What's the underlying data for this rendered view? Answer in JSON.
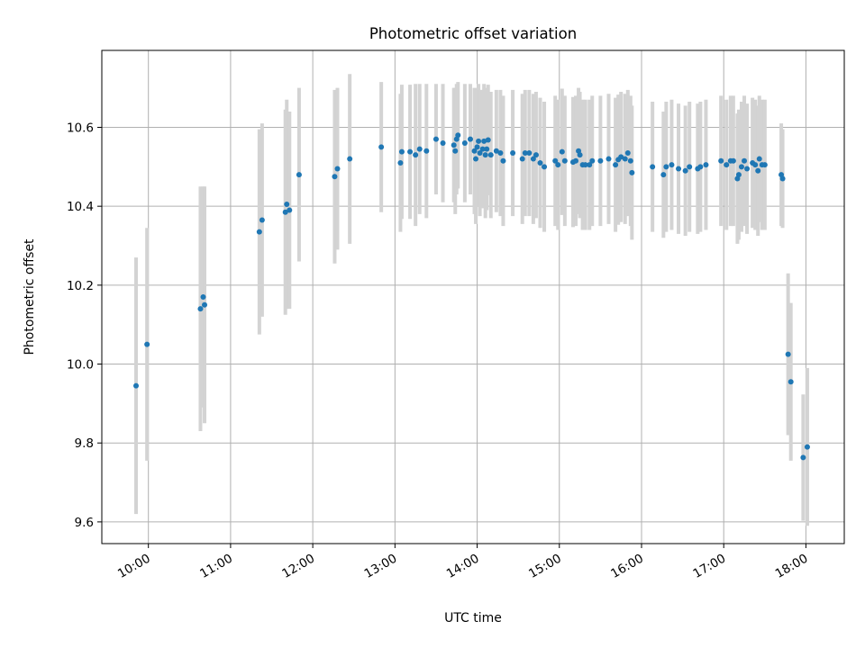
{
  "chart_data": {
    "type": "scatter",
    "title": "Photometric offset variation",
    "xlabel": "UTC time",
    "ylabel": "Photometric offset",
    "x_tick_labels": [
      "10:00",
      "11:00",
      "12:00",
      "13:00",
      "14:00",
      "15:00",
      "16:00",
      "17:00",
      "18:00"
    ],
    "y_tick_labels": [
      "9.6",
      "9.8",
      "10.0",
      "10.2",
      "10.4",
      "10.6"
    ],
    "y_ticks": [
      9.6,
      9.8,
      10.0,
      10.2,
      10.4,
      10.6
    ],
    "xlim": [
      "09:26",
      "18:28"
    ],
    "ylim": [
      9.545,
      10.795
    ],
    "grid": true,
    "colors": {
      "marker": "#1f77b4",
      "errorbar": "#d3d3d3",
      "grid": "#b0b0b0"
    },
    "series": [
      {
        "points": [
          {
            "x": "09:51",
            "y": 9.945,
            "yerr": 0.325
          },
          {
            "x": "09:59",
            "y": 10.05,
            "yerr": 0.295
          },
          {
            "x": "10:38",
            "y": 10.14,
            "yerr": 0.31
          },
          {
            "x": "10:40",
            "y": 10.17,
            "yerr": 0.28
          },
          {
            "x": "10:41",
            "y": 10.15,
            "yerr": 0.3
          },
          {
            "x": "11:21",
            "y": 10.335,
            "yerr": 0.26
          },
          {
            "x": "11:23",
            "y": 10.365,
            "yerr": 0.245
          },
          {
            "x": "11:40",
            "y": 10.385,
            "yerr": 0.26
          },
          {
            "x": "11:41",
            "y": 10.405,
            "yerr": 0.265
          },
          {
            "x": "11:43",
            "y": 10.39,
            "yerr": 0.25
          },
          {
            "x": "11:50",
            "y": 10.48,
            "yerr": 0.22
          },
          {
            "x": "12:16",
            "y": 10.475,
            "yerr": 0.22
          },
          {
            "x": "12:18",
            "y": 10.495,
            "yerr": 0.205
          },
          {
            "x": "12:27",
            "y": 10.52,
            "yerr": 0.215
          },
          {
            "x": "12:50",
            "y": 10.55,
            "yerr": 0.165
          },
          {
            "x": "13:04",
            "y": 10.51,
            "yerr": 0.175
          },
          {
            "x": "13:05",
            "y": 10.538,
            "yerr": 0.17
          },
          {
            "x": "13:11",
            "y": 10.538,
            "yerr": 0.17
          },
          {
            "x": "13:15",
            "y": 10.53,
            "yerr": 0.18
          },
          {
            "x": "13:18",
            "y": 10.545,
            "yerr": 0.165
          },
          {
            "x": "13:23",
            "y": 10.54,
            "yerr": 0.17
          },
          {
            "x": "13:30",
            "y": 10.57,
            "yerr": 0.14
          },
          {
            "x": "13:35",
            "y": 10.56,
            "yerr": 0.15
          },
          {
            "x": "13:43",
            "y": 10.555,
            "yerr": 0.145
          },
          {
            "x": "13:44",
            "y": 10.54,
            "yerr": 0.16
          },
          {
            "x": "13:45",
            "y": 10.57,
            "yerr": 0.14
          },
          {
            "x": "13:46",
            "y": 10.58,
            "yerr": 0.135
          },
          {
            "x": "13:51",
            "y": 10.56,
            "yerr": 0.15
          },
          {
            "x": "13:55",
            "y": 10.57,
            "yerr": 0.14
          },
          {
            "x": "13:58",
            "y": 10.54,
            "yerr": 0.16
          },
          {
            "x": "13:59",
            "y": 10.52,
            "yerr": 0.165
          },
          {
            "x": "14:00",
            "y": 10.55,
            "yerr": 0.15
          },
          {
            "x": "14:01",
            "y": 10.565,
            "yerr": 0.145
          },
          {
            "x": "14:02",
            "y": 10.535,
            "yerr": 0.16
          },
          {
            "x": "14:04",
            "y": 10.545,
            "yerr": 0.15
          },
          {
            "x": "14:05",
            "y": 10.565,
            "yerr": 0.145
          },
          {
            "x": "14:06",
            "y": 10.53,
            "yerr": 0.16
          },
          {
            "x": "14:07",
            "y": 10.545,
            "yerr": 0.155
          },
          {
            "x": "14:08",
            "y": 10.568,
            "yerr": 0.14
          },
          {
            "x": "14:10",
            "y": 10.53,
            "yerr": 0.16
          },
          {
            "x": "14:14",
            "y": 10.54,
            "yerr": 0.155
          },
          {
            "x": "14:17",
            "y": 10.535,
            "yerr": 0.16
          },
          {
            "x": "14:19",
            "y": 10.515,
            "yerr": 0.165
          },
          {
            "x": "14:26",
            "y": 10.535,
            "yerr": 0.16
          },
          {
            "x": "14:33",
            "y": 10.52,
            "yerr": 0.165
          },
          {
            "x": "14:35",
            "y": 10.535,
            "yerr": 0.16
          },
          {
            "x": "14:38",
            "y": 10.535,
            "yerr": 0.16
          },
          {
            "x": "14:41",
            "y": 10.52,
            "yerr": 0.165
          },
          {
            "x": "14:43",
            "y": 10.53,
            "yerr": 0.16
          },
          {
            "x": "14:46",
            "y": 10.51,
            "yerr": 0.165
          },
          {
            "x": "14:49",
            "y": 10.5,
            "yerr": 0.165
          },
          {
            "x": "14:57",
            "y": 10.515,
            "yerr": 0.165
          },
          {
            "x": "14:59",
            "y": 10.505,
            "yerr": 0.165
          },
          {
            "x": "15:02",
            "y": 10.538,
            "yerr": 0.16
          },
          {
            "x": "15:04",
            "y": 10.515,
            "yerr": 0.165
          },
          {
            "x": "15:10",
            "y": 10.512,
            "yerr": 0.165
          },
          {
            "x": "15:12",
            "y": 10.515,
            "yerr": 0.165
          },
          {
            "x": "15:14",
            "y": 10.54,
            "yerr": 0.16
          },
          {
            "x": "15:15",
            "y": 10.53,
            "yerr": 0.16
          },
          {
            "x": "15:17",
            "y": 10.505,
            "yerr": 0.165
          },
          {
            "x": "15:19",
            "y": 10.505,
            "yerr": 0.165
          },
          {
            "x": "15:22",
            "y": 10.505,
            "yerr": 0.165
          },
          {
            "x": "15:24",
            "y": 10.515,
            "yerr": 0.165
          },
          {
            "x": "15:30",
            "y": 10.515,
            "yerr": 0.165
          },
          {
            "x": "15:36",
            "y": 10.52,
            "yerr": 0.165
          },
          {
            "x": "15:41",
            "y": 10.505,
            "yerr": 0.17
          },
          {
            "x": "15:43",
            "y": 10.518,
            "yerr": 0.165
          },
          {
            "x": "15:45",
            "y": 10.525,
            "yerr": 0.165
          },
          {
            "x": "15:48",
            "y": 10.52,
            "yerr": 0.165
          },
          {
            "x": "15:50",
            "y": 10.535,
            "yerr": 0.16
          },
          {
            "x": "15:52",
            "y": 10.515,
            "yerr": 0.165
          },
          {
            "x": "15:53",
            "y": 10.485,
            "yerr": 0.17
          },
          {
            "x": "16:08",
            "y": 10.5,
            "yerr": 0.165
          },
          {
            "x": "16:16",
            "y": 10.48,
            "yerr": 0.16
          },
          {
            "x": "16:18",
            "y": 10.5,
            "yerr": 0.165
          },
          {
            "x": "16:22",
            "y": 10.505,
            "yerr": 0.165
          },
          {
            "x": "16:27",
            "y": 10.495,
            "yerr": 0.165
          },
          {
            "x": "16:32",
            "y": 10.49,
            "yerr": 0.165
          },
          {
            "x": "16:35",
            "y": 10.5,
            "yerr": 0.165
          },
          {
            "x": "16:41",
            "y": 10.495,
            "yerr": 0.165
          },
          {
            "x": "16:43",
            "y": 10.5,
            "yerr": 0.165
          },
          {
            "x": "16:47",
            "y": 10.505,
            "yerr": 0.165
          },
          {
            "x": "16:58",
            "y": 10.515,
            "yerr": 0.165
          },
          {
            "x": "17:02",
            "y": 10.505,
            "yerr": 0.165
          },
          {
            "x": "17:05",
            "y": 10.515,
            "yerr": 0.165
          },
          {
            "x": "17:07",
            "y": 10.515,
            "yerr": 0.165
          },
          {
            "x": "17:10",
            "y": 10.47,
            "yerr": 0.165
          },
          {
            "x": "17:11",
            "y": 10.48,
            "yerr": 0.165
          },
          {
            "x": "17:13",
            "y": 10.5,
            "yerr": 0.165
          },
          {
            "x": "17:15",
            "y": 10.515,
            "yerr": 0.165
          },
          {
            "x": "17:17",
            "y": 10.495,
            "yerr": 0.165
          },
          {
            "x": "17:21",
            "y": 10.51,
            "yerr": 0.165
          },
          {
            "x": "17:23",
            "y": 10.505,
            "yerr": 0.165
          },
          {
            "x": "17:25",
            "y": 10.49,
            "yerr": 0.165
          },
          {
            "x": "17:26",
            "y": 10.52,
            "yerr": 0.16
          },
          {
            "x": "17:28",
            "y": 10.505,
            "yerr": 0.165
          },
          {
            "x": "17:30",
            "y": 10.505,
            "yerr": 0.165
          },
          {
            "x": "17:42",
            "y": 10.48,
            "yerr": 0.13
          },
          {
            "x": "17:43",
            "y": 10.47,
            "yerr": 0.125
          },
          {
            "x": "17:47",
            "y": 10.025,
            "yerr": 0.205
          },
          {
            "x": "17:49",
            "y": 9.955,
            "yerr": 0.2
          },
          {
            "x": "17:58",
            "y": 9.763,
            "yerr": 0.16
          },
          {
            "x": "18:01",
            "y": 9.79,
            "yerr": 0.2
          }
        ]
      }
    ]
  }
}
